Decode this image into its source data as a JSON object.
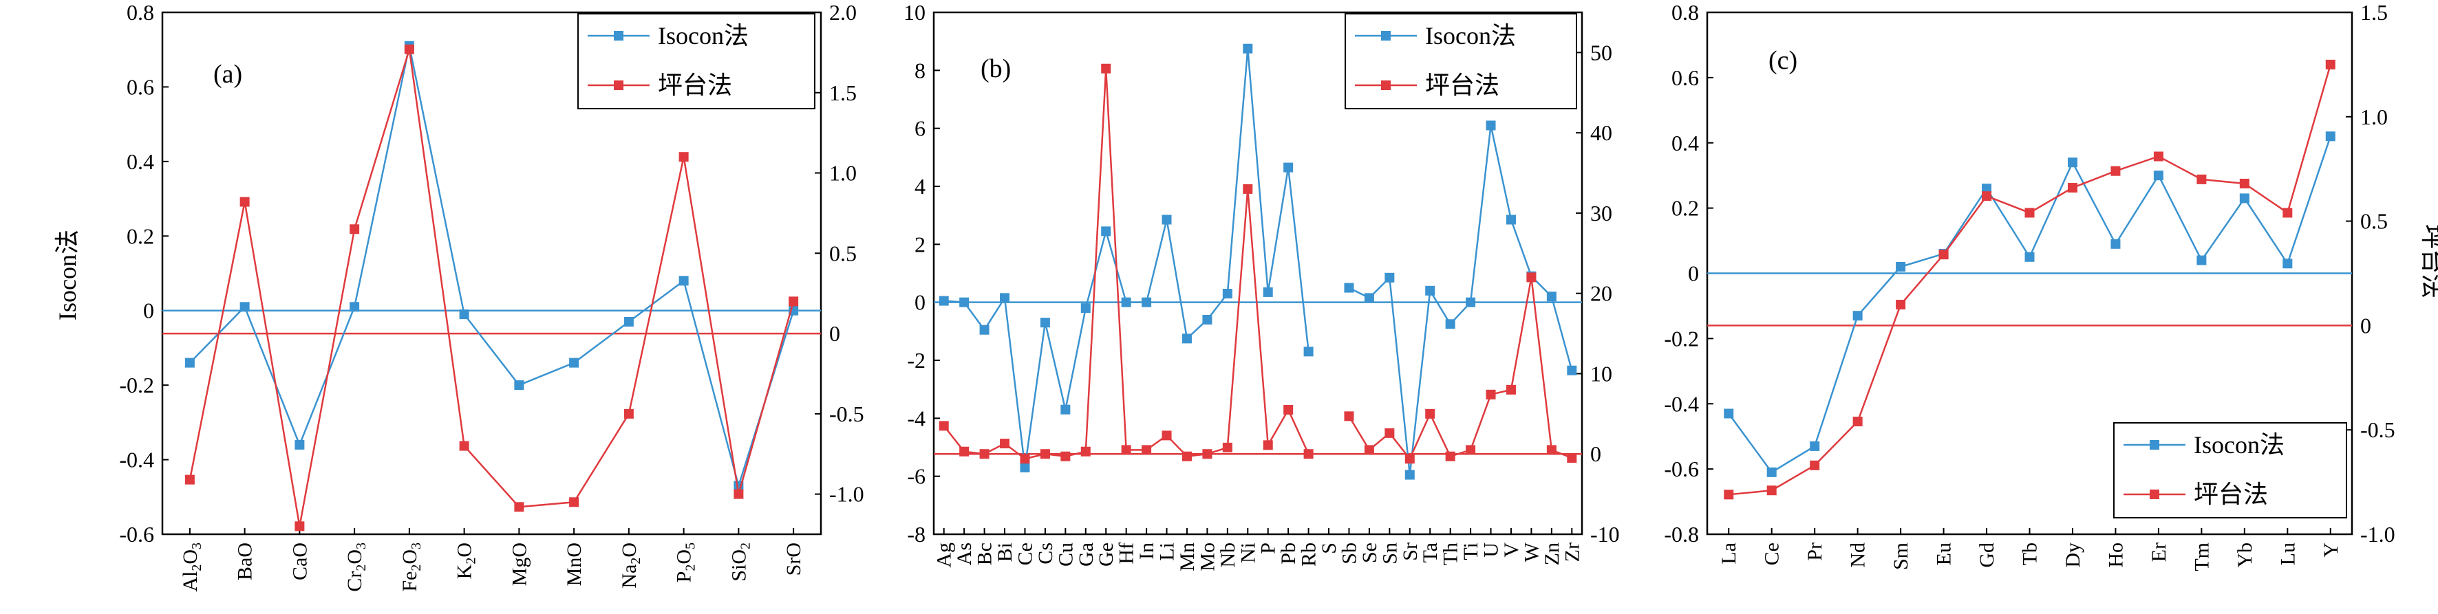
{
  "chart_data": [
    {
      "type": "line",
      "panel_label": "(a)",
      "ylabel_left": "Isocon法",
      "ylabel_right": "",
      "categories": [
        "Al2O3",
        "BaO",
        "CaO",
        "Cr2O3",
        "Fe2O3",
        "K2O",
        "MgO",
        "MnO",
        "Na2O",
        "P2O5",
        "SiO2",
        "SrO"
      ],
      "category_labels": [
        [
          "Al",
          "2",
          "O",
          "3"
        ],
        [
          "BaO"
        ],
        [
          "CaO"
        ],
        [
          "Cr",
          "2",
          "O",
          "3"
        ],
        [
          "Fe",
          "2",
          "O",
          "3"
        ],
        [
          "K",
          "2",
          "O"
        ],
        [
          "MgO"
        ],
        [
          "MnO"
        ],
        [
          "Na",
          "2",
          "O"
        ],
        [
          "P",
          "2",
          "O",
          "5"
        ],
        [
          "SiO",
          "2"
        ],
        [
          "SrO"
        ]
      ],
      "yticks_left": [
        "0.8",
        "0.6",
        "0.4",
        "0.2",
        "0",
        "-0.2",
        "-0.4",
        "-0.6"
      ],
      "yticks_right": [
        "2.0",
        "1.5",
        "1.0",
        "0.5",
        "0",
        "-0.5",
        "-1.0"
      ],
      "ylim_left": [
        -0.6,
        0.8
      ],
      "ylim_right": [
        -1.25,
        2.0
      ],
      "series": [
        {
          "name": "Isocon法",
          "axis": "left",
          "color": "#3a93d0",
          "values": [
            -0.14,
            0.01,
            -0.36,
            0.01,
            0.71,
            -0.01,
            -0.2,
            -0.14,
            -0.03,
            0.08,
            -0.47,
            0.0
          ]
        },
        {
          "name": "坪台法",
          "axis": "right",
          "color": "#e03a3e",
          "values": [
            -0.91,
            0.82,
            -1.2,
            0.65,
            1.77,
            -0.7,
            -1.08,
            -1.05,
            -0.5,
            1.1,
            -1.0,
            0.2
          ]
        }
      ],
      "reference_lines": [
        {
          "axis": "left",
          "value": 0,
          "color": "#3a93d0"
        },
        {
          "axis": "right",
          "value": 0,
          "color": "#e03a3e"
        }
      ],
      "legend": {
        "position": "top-right",
        "entries": [
          "Isocon法",
          "坪台法"
        ]
      },
      "grid": false
    },
    {
      "type": "line",
      "panel_label": "(b)",
      "ylabel_left": "",
      "ylabel_right": "",
      "categories": [
        "Ag",
        "As",
        "Bc",
        "Bi",
        "Ce",
        "Cs",
        "Cu",
        "Ga",
        "Ge",
        "Hf",
        "In",
        "Li",
        "Mn",
        "Mo",
        "Nb",
        "Ni",
        "P",
        "Pb",
        "Rb",
        "S",
        "Sb",
        "Se",
        "Sn",
        "Sr",
        "Ta",
        "Th",
        "Ti",
        "U",
        "V",
        "W",
        "Zn",
        "Zr"
      ],
      "yticks_left": [
        "10",
        "8",
        "6",
        "4",
        "2",
        "0",
        "-2",
        "-4",
        "-6",
        "-8"
      ],
      "yticks_right": [
        "50",
        "40",
        "30",
        "20",
        "10",
        "0",
        "-10"
      ],
      "ylim_left": [
        -8,
        10
      ],
      "ylim_right": [
        -10,
        55
      ],
      "series": [
        {
          "name": "Isocon法",
          "axis": "left",
          "color": "#3a93d0",
          "values": [
            0.05,
            0.0,
            -0.95,
            0.15,
            -5.7,
            -0.7,
            -3.7,
            -0.2,
            2.45,
            0.0,
            0.0,
            2.85,
            -1.25,
            -0.6,
            0.3,
            8.75,
            0.35,
            4.65,
            -1.7,
            null,
            0.5,
            0.15,
            0.85,
            -5.95,
            0.4,
            -0.75,
            0.0,
            6.1,
            2.85,
            0.9,
            0.2,
            -2.35
          ]
        },
        {
          "name": "坪台法",
          "axis": "right",
          "color": "#e03a3e",
          "values": [
            3.5,
            0.3,
            0.0,
            1.3,
            -0.6,
            0.0,
            -0.3,
            0.3,
            48.0,
            0.5,
            0.5,
            2.3,
            -0.3,
            0.0,
            0.8,
            33.0,
            1.1,
            5.5,
            0.0,
            null,
            4.7,
            0.5,
            2.6,
            -0.6,
            5.0,
            -0.3,
            0.5,
            7.4,
            8.0,
            22.0,
            0.5,
            -0.5
          ]
        }
      ],
      "reference_lines": [
        {
          "axis": "left",
          "value": 0,
          "color": "#3a93d0"
        },
        {
          "axis": "right",
          "value": 0,
          "color": "#e03a3e"
        }
      ],
      "legend": {
        "position": "top-right",
        "entries": [
          "Isocon法",
          "坪台法"
        ]
      },
      "grid": false
    },
    {
      "type": "line",
      "panel_label": "(c)",
      "ylabel_left": "",
      "ylabel_right": "坪台法",
      "categories": [
        "La",
        "Ce",
        "Pr",
        "Nd",
        "Sm",
        "Eu",
        "Gd",
        "Tb",
        "Dy",
        "Ho",
        "Er",
        "Tm",
        "Yb",
        "Lu",
        "Y"
      ],
      "yticks_left": [
        "0.8",
        "0.6",
        "0.4",
        "0.2",
        "0",
        "-0.2",
        "-0.4",
        "-0.6",
        "-0.8"
      ],
      "yticks_right": [
        "1.5",
        "1.0",
        "0.5",
        "0",
        "-0.5",
        "-1.0"
      ],
      "ylim_left": [
        -0.8,
        0.8
      ],
      "ylim_right": [
        -1.0,
        1.5
      ],
      "series": [
        {
          "name": "Isocon法",
          "axis": "left",
          "color": "#3a93d0",
          "values": [
            -0.43,
            -0.61,
            -0.53,
            -0.13,
            0.02,
            0.06,
            0.26,
            0.05,
            0.34,
            0.09,
            0.3,
            0.04,
            0.23,
            0.03,
            0.42
          ]
        },
        {
          "name": "坪台法",
          "axis": "right",
          "color": "#e03a3e",
          "values": [
            -0.81,
            -0.79,
            -0.67,
            -0.46,
            0.1,
            0.34,
            0.62,
            0.54,
            0.66,
            0.74,
            0.81,
            0.7,
            0.68,
            0.54,
            1.25
          ]
        }
      ],
      "reference_lines": [
        {
          "axis": "left",
          "value": 0,
          "color": "#3a93d0"
        },
        {
          "axis": "right",
          "value": 0,
          "color": "#e03a3e"
        }
      ],
      "legend": {
        "position": "bottom-right",
        "entries": [
          "Isocon法",
          "坪台法"
        ]
      },
      "grid": false
    }
  ]
}
